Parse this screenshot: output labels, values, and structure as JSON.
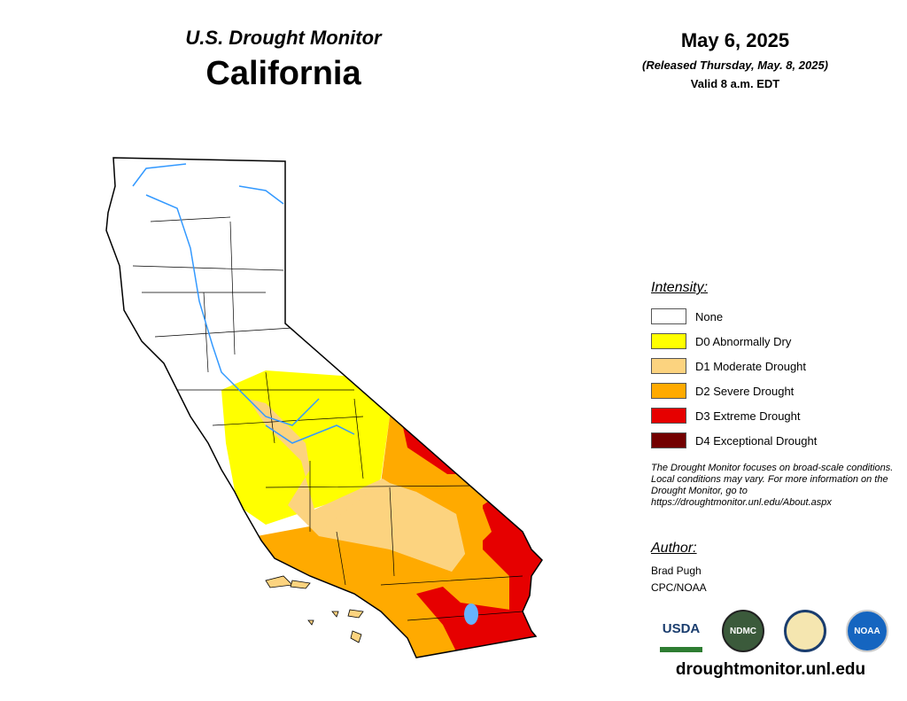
{
  "header": {
    "subtitle": "U.S. Drought Monitor",
    "title": "California",
    "date": "May 6, 2025",
    "released": "(Released Thursday, May. 8, 2025)",
    "valid": "Valid 8 a.m. EDT"
  },
  "legend": {
    "title": "Intensity:",
    "items": [
      {
        "label": "None",
        "color": "#ffffff"
      },
      {
        "label": "D0 Abnormally Dry",
        "color": "#ffff00"
      },
      {
        "label": "D1 Moderate Drought",
        "color": "#fcd37f"
      },
      {
        "label": "D2 Severe Drought",
        "color": "#ffaa00"
      },
      {
        "label": "D3 Extreme Drought",
        "color": "#e60000"
      },
      {
        "label": "D4 Exceptional Drought",
        "color": "#730000"
      }
    ]
  },
  "note": "The Drought Monitor focuses on broad-scale conditions. Local conditions may vary. For more information on the Drought Monitor, go to https://droughtmonitor.unl.edu/About.aspx",
  "author": {
    "title": "Author:",
    "name": "Brad Pugh",
    "org": "CPC/NOAA"
  },
  "logos": [
    "USDA",
    "NDMC",
    "NOAA"
  ],
  "url": "droughtmonitor.unl.edu"
}
